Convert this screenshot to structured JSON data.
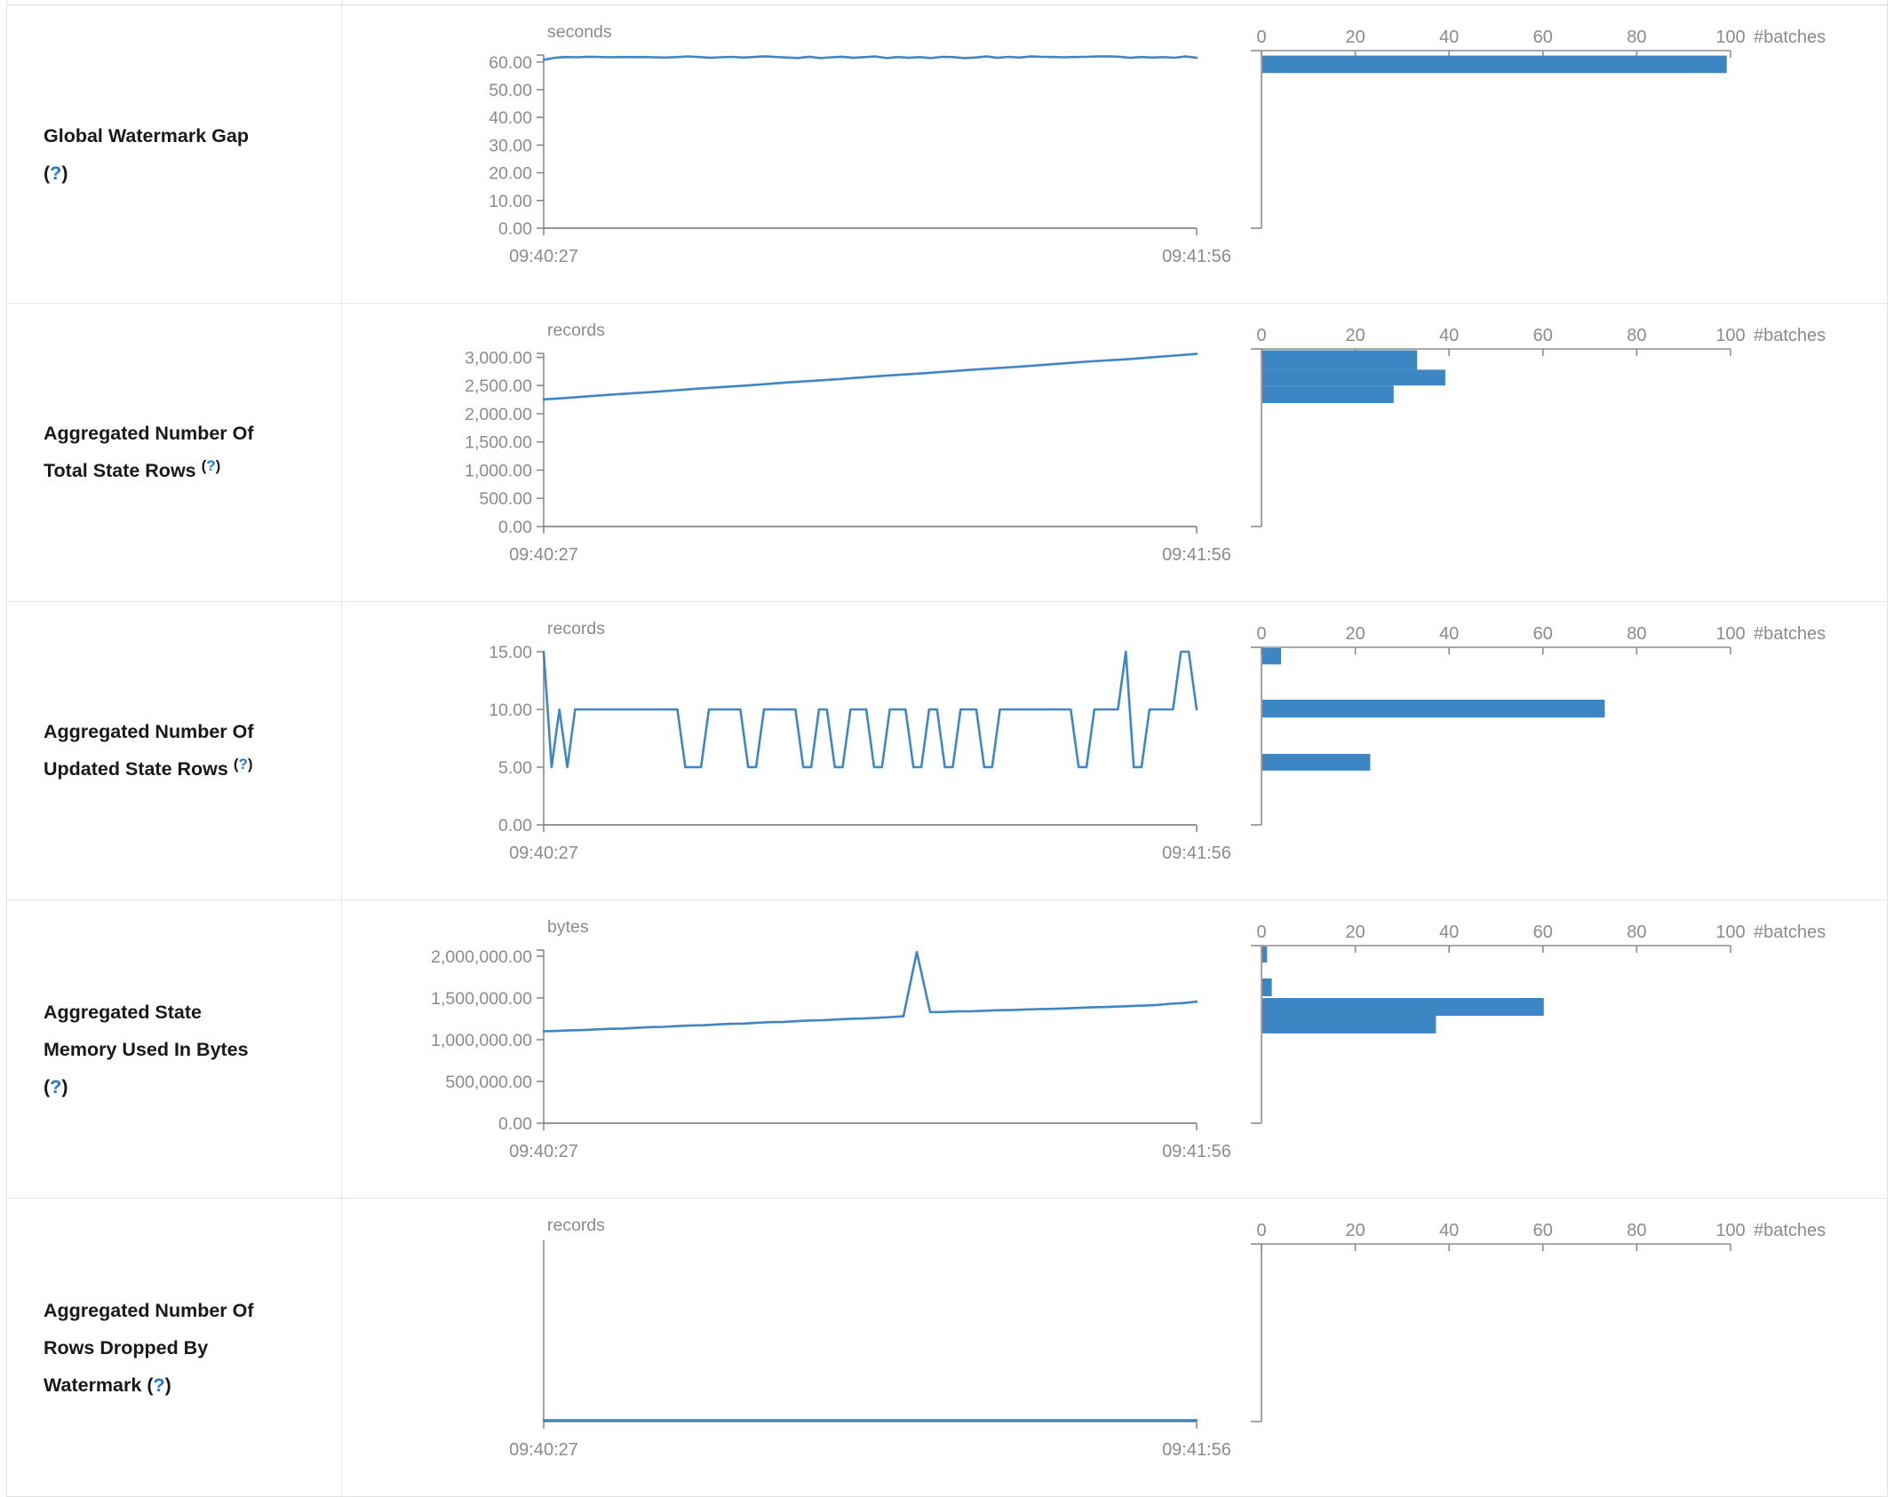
{
  "colors": {
    "line_blue": "#3e86c4",
    "bar_blue": "#3c86c4",
    "axis_gray": "#8c8c8c",
    "baseline_gray": "#707070",
    "tick_text_gray": "#8b8b8b",
    "label_dark": "#191919",
    "help_blue": "#1b79cd",
    "border_gray": "#e6e8ea"
  },
  "x_axis": {
    "start": "09:40:27",
    "end": "09:41:56"
  },
  "histogram_axis": {
    "tick_labels": [
      "0",
      "20",
      "40",
      "60",
      "80",
      "100"
    ],
    "tick_values": [
      0,
      20,
      40,
      60,
      80,
      100
    ],
    "max": 100,
    "label": "#batches"
  },
  "rows": [
    {
      "label": "Global Watermark Gap",
      "help": "(?)",
      "help_style": "inline",
      "unit": "seconds",
      "y_tick_labels": [
        "60.00",
        "50.00",
        "40.00",
        "30.00",
        "20.00",
        "10.00",
        "0.00"
      ]
    },
    {
      "label": "Aggregated Number Of Total State Rows",
      "help": "(?)",
      "help_style": "sup",
      "unit": "records",
      "y_tick_labels": [
        "3,000.00",
        "2,500.00",
        "2,000.00",
        "1,500.00",
        "1,000.00",
        "500.00",
        "0.00"
      ]
    },
    {
      "label": "Aggregated Number Of Updated State Rows",
      "help": "(?)",
      "help_style": "sup",
      "unit": "records",
      "y_tick_labels": [
        "15.00",
        "10.00",
        "5.00",
        "0.00"
      ]
    },
    {
      "label": "Aggregated State Memory Used In Bytes",
      "help": "(?)",
      "help_style": "inline",
      "unit": "bytes",
      "y_tick_labels": [
        "2,000,000.00",
        "1,500,000.00",
        "1,000,000.00",
        "500,000.00",
        "0.00"
      ]
    },
    {
      "label": "Aggregated Number Of Rows Dropped By Watermark",
      "help": "(?)",
      "help_style": "inline",
      "unit": "records",
      "y_tick_labels": []
    }
  ],
  "chart_data": [
    {
      "type": "line",
      "metric": "Global Watermark Gap",
      "unit": "seconds",
      "x_range": [
        "09:40:27",
        "09:41:56"
      ],
      "y_ticks": [
        60,
        50,
        40,
        30,
        20,
        10,
        0
      ],
      "y_domain_max": 62.5,
      "series": [
        60.8,
        61.5,
        61.8,
        61.7,
        61.9,
        61.8,
        61.7,
        61.8,
        61.75,
        61.8,
        61.7,
        61.6,
        61.75,
        62.0,
        61.8,
        61.5,
        61.7,
        61.85,
        61.6,
        61.8,
        62.05,
        61.8,
        61.6,
        61.45,
        61.9,
        61.4,
        61.7,
        61.9,
        61.5,
        61.75,
        62.0,
        61.4,
        61.8,
        61.5,
        61.75,
        61.4,
        61.85,
        61.75,
        61.4,
        61.6,
        62.0,
        61.5,
        61.85,
        61.6,
        62.0,
        61.85,
        61.8,
        61.7,
        61.8,
        61.85,
        62.0,
        62.05,
        61.9,
        61.5,
        61.8,
        61.6,
        61.75,
        61.55,
        62.0,
        61.5
      ],
      "histogram": {
        "unit": "#batches",
        "axis_max": 100,
        "bins": [
          {
            "lo": 56.0,
            "hi": 62.3,
            "count": 99
          }
        ]
      }
    },
    {
      "type": "line",
      "metric": "Aggregated Number Of Total State Rows",
      "unit": "records",
      "x_range": [
        "09:40:27",
        "09:41:56"
      ],
      "y_ticks": [
        3000,
        2500,
        2000,
        1500,
        1000,
        500,
        0
      ],
      "y_domain_max": 3070,
      "series": [
        2255,
        2280,
        2310,
        2340,
        2365,
        2390,
        2420,
        2450,
        2475,
        2500,
        2530,
        2560,
        2585,
        2610,
        2640,
        2670,
        2695,
        2720,
        2750,
        2780,
        2805,
        2830,
        2860,
        2890,
        2920,
        2945,
        2970,
        3000,
        3030,
        3060
      ],
      "histogram": {
        "unit": "#batches",
        "axis_max": 100,
        "bins": [
          {
            "lo": 2781,
            "hi": 3125,
            "count": 33
          },
          {
            "lo": 2500,
            "hi": 2781,
            "count": 39
          },
          {
            "lo": 2188,
            "hi": 2500,
            "count": 28
          }
        ]
      }
    },
    {
      "type": "line",
      "metric": "Aggregated Number Of Updated State Rows",
      "unit": "records",
      "x_range": [
        "09:40:27",
        "09:41:56"
      ],
      "y_ticks": [
        15,
        10,
        5,
        0
      ],
      "y_domain_max": 15,
      "series": [
        15,
        5,
        10,
        5,
        10,
        10,
        10,
        10,
        10,
        10,
        10,
        10,
        10,
        10,
        10,
        10,
        10,
        10,
        5,
        5,
        5,
        10,
        10,
        10,
        10,
        10,
        5,
        5,
        10,
        10,
        10,
        10,
        10,
        5,
        5,
        10,
        10,
        5,
        5,
        10,
        10,
        10,
        5,
        5,
        10,
        10,
        10,
        5,
        5,
        10,
        10,
        5,
        5,
        10,
        10,
        10,
        5,
        5,
        10,
        10,
        10,
        10,
        10,
        10,
        10,
        10,
        10,
        10,
        5,
        5,
        10,
        10,
        10,
        10,
        15,
        5,
        5,
        10,
        10,
        10,
        10,
        15,
        15,
        10
      ],
      "histogram": {
        "unit": "#batches",
        "axis_max": 100,
        "bins": [
          {
            "lo": 13.9,
            "hi": 15.4,
            "count": 4
          },
          {
            "lo": 9.3,
            "hi": 10.85,
            "count": 73
          },
          {
            "lo": 4.7,
            "hi": 6.15,
            "count": 23
          }
        ]
      }
    },
    {
      "type": "line",
      "metric": "Aggregated State Memory Used In Bytes",
      "unit": "bytes",
      "x_range": [
        "09:40:27",
        "09:41:56"
      ],
      "y_ticks": [
        2000000,
        1500000,
        1000000,
        500000,
        0
      ],
      "y_domain_max": 2073000,
      "series": [
        1100000,
        1105000,
        1112000,
        1115000,
        1124000,
        1130000,
        1133000,
        1142000,
        1150000,
        1153000,
        1162000,
        1170000,
        1173000,
        1182000,
        1190000,
        1193000,
        1202000,
        1210000,
        1213000,
        1222000,
        1230000,
        1233000,
        1242000,
        1250000,
        1253000,
        1262000,
        1270000,
        1280000,
        2050000,
        1330000,
        1332000,
        1338000,
        1340000,
        1346000,
        1352000,
        1354000,
        1360000,
        1366000,
        1368000,
        1374000,
        1380000,
        1386000,
        1390000,
        1396000,
        1402000,
        1408000,
        1415000,
        1430000,
        1438000,
        1455000
      ],
      "histogram": {
        "unit": "#batches",
        "axis_max": 100,
        "bins": [
          {
            "lo": 1924000,
            "hi": 2126000,
            "count": 1
          },
          {
            "lo": 1520000,
            "hi": 1733000,
            "count": 2
          },
          {
            "lo": 1286000,
            "hi": 1499000,
            "count": 60
          },
          {
            "lo": 1074000,
            "hi": 1286000,
            "count": 37
          }
        ]
      }
    },
    {
      "type": "line",
      "metric": "Aggregated Number Of Rows Dropped By Watermark",
      "unit": "records",
      "x_range": [
        "09:40:27",
        "09:41:56"
      ],
      "y_ticks": [],
      "y_domain_max": 1,
      "series": [
        0,
        0,
        0,
        0,
        0,
        0,
        0,
        0,
        0,
        0
      ],
      "histogram": {
        "unit": "#batches",
        "axis_max": 100,
        "bins": []
      }
    }
  ]
}
